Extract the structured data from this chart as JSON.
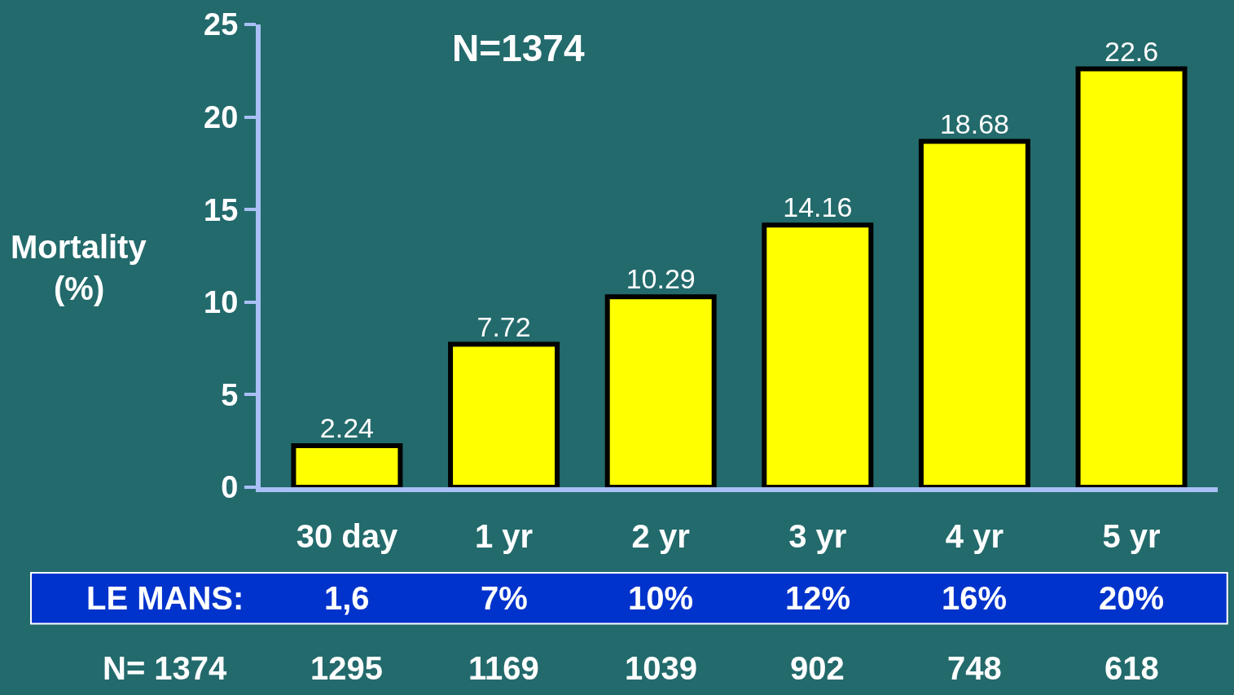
{
  "chart_data": {
    "type": "bar",
    "title": "N=1374",
    "ylabel": "Mortality (%)",
    "categories": [
      "30 day",
      "1 yr",
      "2 yr",
      "3 yr",
      "4 yr",
      "5 yr"
    ],
    "values": [
      2.24,
      7.72,
      10.29,
      14.16,
      18.68,
      22.6
    ],
    "color": "#ffff00",
    "data_labels": true,
    "ylim": [
      0,
      25
    ],
    "yticks": [
      0,
      5,
      10,
      15,
      20,
      25
    ],
    "annotations": [
      "LE MANS:",
      "1,6",
      "7%",
      "10%",
      "12%",
      "16%",
      "20%",
      "N= 1374",
      "1295",
      "1169",
      "1039",
      "902",
      "748",
      "618"
    ]
  }
}
